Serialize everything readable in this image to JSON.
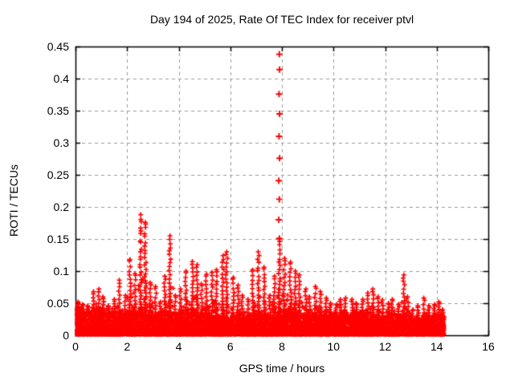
{
  "chart_data": {
    "type": "scatter",
    "title": "Day 194 of 2025, Rate Of TEC Index for receiver ptvl",
    "xlabel": "GPS time / hours",
    "ylabel": "ROTI / TECUs",
    "xlim": [
      0,
      16
    ],
    "ylim": [
      0,
      0.45
    ],
    "xticks": [
      0,
      2,
      4,
      6,
      8,
      10,
      12,
      14,
      16
    ],
    "xtick_labels": [
      "0",
      "2",
      "4",
      "6",
      "8",
      "10",
      "12",
      "14",
      "16"
    ],
    "yticks": [
      0,
      0.05,
      0.1,
      0.15,
      0.2,
      0.25,
      0.3,
      0.35,
      0.4,
      0.45
    ],
    "ytick_labels": [
      "0",
      "0.05",
      "0.1",
      "0.15",
      "0.2",
      "0.25",
      "0.3",
      "0.35",
      "0.4",
      "0.45"
    ],
    "grid": true,
    "grid_style": "dashed",
    "legend": "none",
    "marker": "plus",
    "marker_color": "#ff0000",
    "grid_color": "#999999",
    "axis_color": "#000000",
    "text_color": "#000000",
    "background_color": "#ffffff",
    "data_start_hour": 0,
    "data_end_hour": 14.3,
    "series_name": "ROTI",
    "envelope_bins_format": [
      "hour_start",
      "dense_band_top_TECU",
      "spike_peak_TECU"
    ],
    "envelope_bins": [
      [
        0.0,
        0.038,
        0.052
      ],
      [
        0.2,
        0.034,
        0.048
      ],
      [
        0.4,
        0.034,
        0.046
      ],
      [
        0.6,
        0.038,
        0.068
      ],
      [
        0.8,
        0.038,
        0.072
      ],
      [
        1.0,
        0.034,
        0.06
      ],
      [
        1.2,
        0.03,
        0.046
      ],
      [
        1.4,
        0.034,
        0.056
      ],
      [
        1.6,
        0.034,
        0.086
      ],
      [
        1.8,
        0.03,
        0.062
      ],
      [
        2.0,
        0.034,
        0.118
      ],
      [
        2.2,
        0.034,
        0.096
      ],
      [
        2.4,
        0.04,
        0.188
      ],
      [
        2.6,
        0.04,
        0.176
      ],
      [
        2.8,
        0.034,
        0.082
      ],
      [
        3.0,
        0.03,
        0.076
      ],
      [
        3.2,
        0.03,
        0.052
      ],
      [
        3.4,
        0.034,
        0.092
      ],
      [
        3.6,
        0.034,
        0.155
      ],
      [
        3.8,
        0.03,
        0.062
      ],
      [
        4.0,
        0.03,
        0.072
      ],
      [
        4.2,
        0.034,
        0.1
      ],
      [
        4.4,
        0.034,
        0.115
      ],
      [
        4.6,
        0.034,
        0.11
      ],
      [
        4.8,
        0.03,
        0.08
      ],
      [
        5.0,
        0.034,
        0.095
      ],
      [
        5.2,
        0.03,
        0.098
      ],
      [
        5.4,
        0.03,
        0.102
      ],
      [
        5.6,
        0.026,
        0.124
      ],
      [
        5.8,
        0.026,
        0.13
      ],
      [
        6.0,
        0.026,
        0.09
      ],
      [
        6.2,
        0.03,
        0.078
      ],
      [
        6.4,
        0.026,
        0.062
      ],
      [
        6.6,
        0.026,
        0.056
      ],
      [
        6.8,
        0.03,
        0.102
      ],
      [
        7.0,
        0.03,
        0.13
      ],
      [
        7.2,
        0.03,
        0.106
      ],
      [
        7.4,
        0.026,
        0.062
      ],
      [
        7.6,
        0.03,
        0.092
      ],
      [
        7.8,
        0.036,
        0.15
      ],
      [
        8.0,
        0.036,
        0.12
      ],
      [
        8.2,
        0.036,
        0.114
      ],
      [
        8.4,
        0.034,
        0.1
      ],
      [
        8.6,
        0.03,
        0.094
      ],
      [
        8.8,
        0.03,
        0.072
      ],
      [
        9.0,
        0.03,
        0.06
      ],
      [
        9.2,
        0.03,
        0.076
      ],
      [
        9.4,
        0.03,
        0.068
      ],
      [
        9.6,
        0.03,
        0.058
      ],
      [
        9.8,
        0.03,
        0.05
      ],
      [
        10.0,
        0.03,
        0.048
      ],
      [
        10.2,
        0.03,
        0.056
      ],
      [
        10.4,
        0.03,
        0.058
      ],
      [
        10.6,
        0.03,
        0.056
      ],
      [
        10.8,
        0.03,
        0.05
      ],
      [
        11.0,
        0.03,
        0.056
      ],
      [
        11.2,
        0.03,
        0.066
      ],
      [
        11.4,
        0.03,
        0.072
      ],
      [
        11.6,
        0.03,
        0.06
      ],
      [
        11.8,
        0.026,
        0.055
      ],
      [
        12.0,
        0.03,
        0.05
      ],
      [
        12.2,
        0.03,
        0.056
      ],
      [
        12.4,
        0.026,
        0.048
      ],
      [
        12.6,
        0.03,
        0.094
      ],
      [
        12.8,
        0.03,
        0.06
      ],
      [
        13.0,
        0.02,
        0.04
      ],
      [
        13.2,
        0.024,
        0.046
      ],
      [
        13.4,
        0.024,
        0.058
      ],
      [
        13.6,
        0.024,
        0.046
      ],
      [
        13.8,
        0.028,
        0.048
      ],
      [
        14.0,
        0.028,
        0.052
      ],
      [
        14.2,
        0.024,
        0.04
      ],
      [
        14.3,
        0.0,
        0.0
      ]
    ],
    "outlier_spike": {
      "hour": 7.9,
      "points": [
        [
          7.9,
          0.438
        ],
        [
          7.91,
          0.414
        ],
        [
          7.89,
          0.376
        ],
        [
          7.91,
          0.345
        ],
        [
          7.89,
          0.31
        ],
        [
          7.91,
          0.276
        ],
        [
          7.88,
          0.241
        ],
        [
          7.9,
          0.212
        ],
        [
          7.88,
          0.18
        ],
        [
          7.9,
          0.151
        ]
      ]
    }
  }
}
